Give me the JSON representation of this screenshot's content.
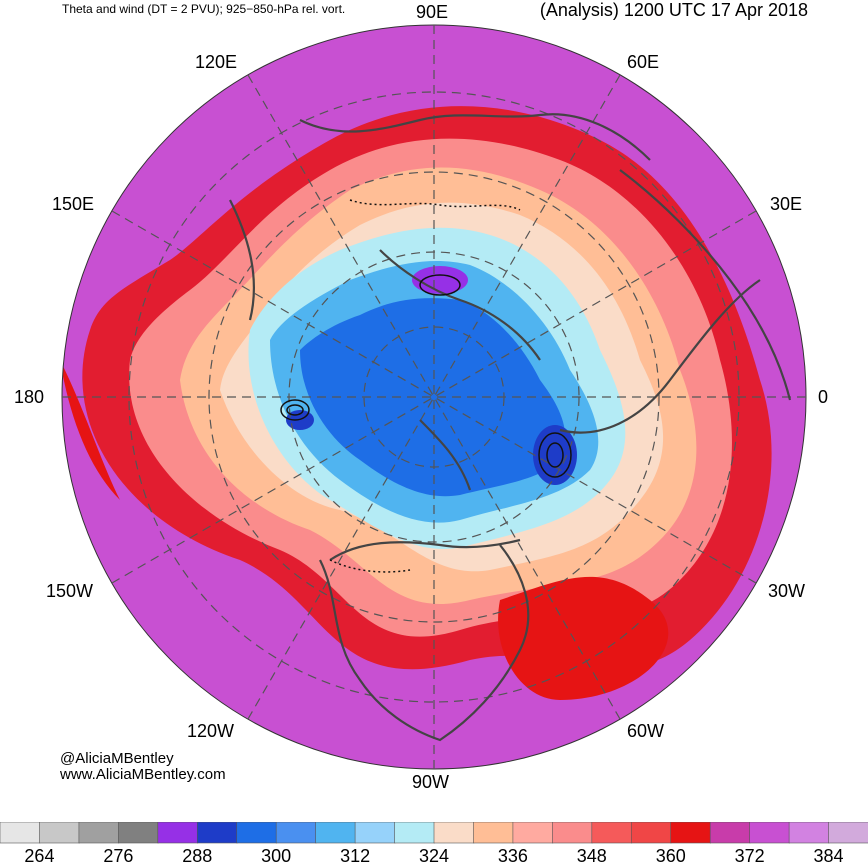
{
  "header": {
    "left_title": "Theta and wind (DT = 2 PVU); 925−850-hPa rel. vort.",
    "right_title": "(Analysis) 1200 UTC 17 Apr 2018"
  },
  "longitude_labels": {
    "top": "90E",
    "top_left": "120E",
    "top_right": "60E",
    "upper_left": "150E",
    "upper_right": "30E",
    "left": "180",
    "right": "0",
    "lower_left": "150W",
    "lower_right": "30W",
    "bottom_left": "120W",
    "bottom_right": "60W",
    "bottom": "90W"
  },
  "credits": {
    "handle": "@AliciaMBentley",
    "website": "www.AliciaMBentley.com"
  },
  "colorbar": {
    "colors": [
      "#e6e6e6",
      "#c8c8c8",
      "#a0a0a0",
      "#808080",
      "#9630e6",
      "#1e3cc8",
      "#1e6ee6",
      "#4a90f0",
      "#50b4f0",
      "#96d2fa",
      "#b4ebf5",
      "#fadcc8",
      "#ffbe96",
      "#ffaaa0",
      "#fa8c8c",
      "#f55a5a",
      "#f04646",
      "#e61414",
      "#c83caa",
      "#c850d2",
      "#d282e1",
      "#d2aadc"
    ],
    "tick_labels": [
      "264",
      "276",
      "288",
      "300",
      "312",
      "324",
      "336",
      "348",
      "360",
      "372",
      "384"
    ]
  },
  "map": {
    "projection": "north polar stereographic",
    "field_color_by_band": {
      "outer": "#c850d2",
      "jet": "#e61414",
      "warm": "#ffbe96",
      "cool": "#96d2fa",
      "cold": "#1e6ee6",
      "coldest": "#9630e6"
    },
    "coastline_color": "#444444",
    "grid_color": "#555555"
  }
}
